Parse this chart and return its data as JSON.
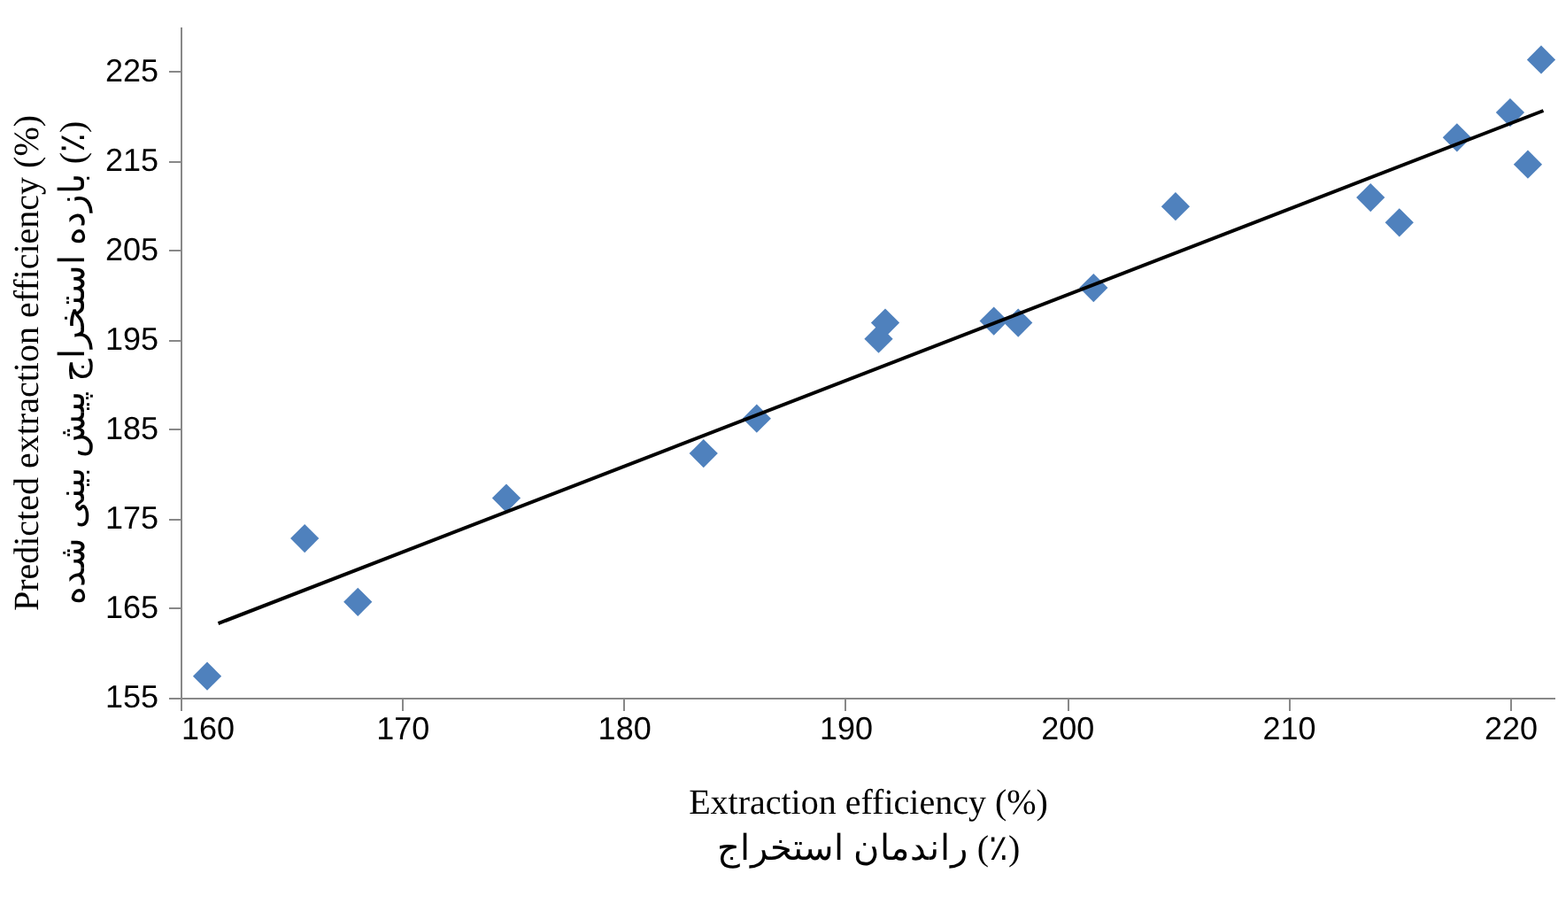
{
  "chart_data": {
    "type": "scatter",
    "xlabel": "Extraction efficiency (%)\nراندمان استخراج (٪)",
    "ylabel": "Predicted extraction efficiency (%)\nبازده استخراج پیش بینی شده (٪)",
    "xlim": [
      160,
      222
    ],
    "xticks": [
      160,
      170,
      180,
      190,
      200,
      210,
      220
    ],
    "ylim": [
      155,
      230
    ],
    "yticks": [
      155,
      165,
      175,
      185,
      195,
      205,
      215,
      225
    ],
    "grid": false,
    "marker": "diamond",
    "series": [
      {
        "color": "#4f81bd",
        "x": [
          161.2,
          165.6,
          168.0,
          174.7,
          183.6,
          186.0,
          191.5,
          191.8,
          196.7,
          197.8,
          201.2,
          204.9,
          213.7,
          215.0,
          217.6,
          220.0,
          220.8,
          221.4
        ],
        "values": [
          157.4,
          172.8,
          165.7,
          177.3,
          182.3,
          186.2,
          195.1,
          196.9,
          197.1,
          196.9,
          200.8,
          209.9,
          210.9,
          208.1,
          217.6,
          220.4,
          214.6,
          226.3
        ]
      },
      {
        "type": "line",
        "marker": "none",
        "color": "#000000",
        "x": [
          161.7,
          221.5
        ],
        "values": [
          163.3,
          220.6
        ]
      }
    ]
  }
}
